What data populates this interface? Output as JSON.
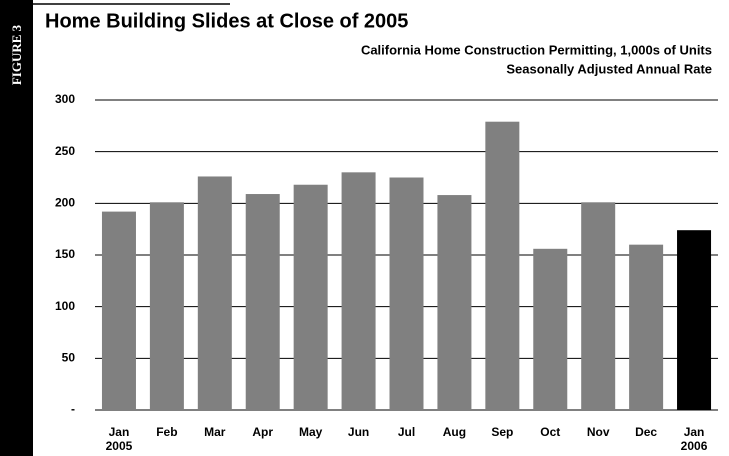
{
  "chart_data": {
    "type": "bar",
    "figure_label": "FIGURE 3",
    "title": "Home Building Slides at Close of 2005",
    "subtitle": [
      "California Home Construction Permitting, 1,000s of Units",
      "Seasonally Adjusted Annual Rate"
    ],
    "categories": [
      "Jan\n2005",
      "Feb",
      "Mar",
      "Apr",
      "May",
      "Jun",
      "Jul",
      "Aug",
      "Sep",
      "Oct",
      "Nov",
      "Dec",
      "Jan\n2006"
    ],
    "values": [
      192,
      201,
      226,
      209,
      218,
      230,
      225,
      208,
      279,
      156,
      201,
      160,
      174
    ],
    "colors": [
      "#808080",
      "#808080",
      "#808080",
      "#808080",
      "#808080",
      "#808080",
      "#808080",
      "#808080",
      "#808080",
      "#808080",
      "#808080",
      "#808080",
      "#000000"
    ],
    "ylim": [
      0,
      300
    ],
    "yticks": [
      {
        "value": 0,
        "label": "-"
      },
      50,
      100,
      150,
      200,
      250,
      300
    ],
    "grid": true
  }
}
